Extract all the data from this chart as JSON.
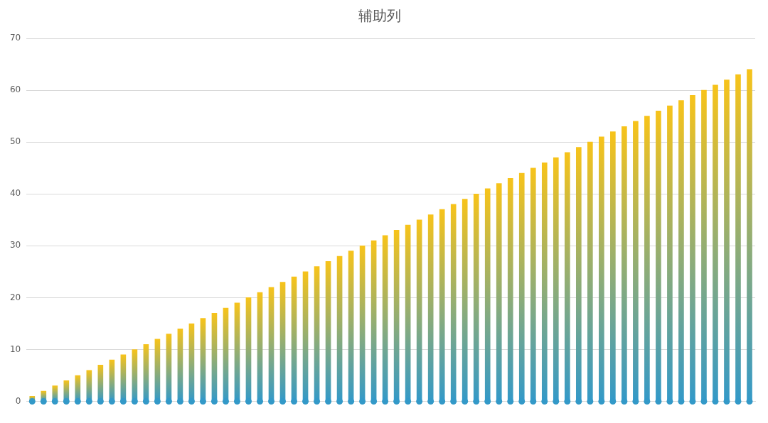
{
  "chart_data": {
    "type": "bar",
    "title": "辅助列",
    "categories": [
      null,
      null,
      null,
      null,
      null,
      null,
      null,
      null,
      null,
      null,
      null,
      null,
      null,
      null,
      null,
      null,
      null,
      null,
      null,
      null,
      null,
      null,
      null,
      null,
      null,
      null,
      null,
      null,
      null,
      null,
      null,
      null,
      null,
      null,
      null,
      null,
      null,
      null,
      null,
      null,
      null,
      null,
      null,
      null,
      null,
      null,
      null,
      null,
      null,
      null,
      null,
      null,
      null,
      null,
      null,
      null,
      null,
      null,
      null,
      null,
      null,
      null,
      null,
      null
    ],
    "series": [
      {
        "color": "#f7c31a",
        "values": [
          1,
          2,
          3,
          4,
          5,
          6,
          7,
          8,
          9,
          10,
          11,
          12,
          13,
          14,
          15,
          16,
          17,
          18,
          19,
          20,
          21,
          22,
          23,
          24,
          25,
          26,
          27,
          28,
          29,
          30,
          31,
          32,
          33,
          34,
          35,
          36,
          37,
          38,
          39,
          40,
          41,
          42,
          43,
          44,
          45,
          46,
          47,
          48,
          49,
          50,
          51,
          52,
          53,
          54,
          55,
          56,
          57,
          58,
          59,
          60,
          61,
          62,
          63,
          64
        ]
      },
      {
        "type": "scatter",
        "color": "#3399c8",
        "values": [
          0,
          0,
          0,
          0,
          0,
          0,
          0,
          0,
          0,
          0,
          0,
          0,
          0,
          0,
          0,
          0,
          0,
          0,
          0,
          0,
          0,
          0,
          0,
          0,
          0,
          0,
          0,
          0,
          0,
          0,
          0,
          0,
          0,
          0,
          0,
          0,
          0,
          0,
          0,
          0,
          0,
          0,
          0,
          0,
          0,
          0,
          0,
          0,
          0,
          0,
          0,
          0,
          0,
          0,
          0,
          0,
          0,
          0,
          0,
          0,
          0,
          0,
          0,
          0
        ]
      }
    ],
    "ylim": [
      0,
      70
    ],
    "yticks": [
      0,
      10,
      20,
      30,
      40,
      50,
      60,
      70
    ],
    "grid": "y",
    "marker": "circle"
  }
}
